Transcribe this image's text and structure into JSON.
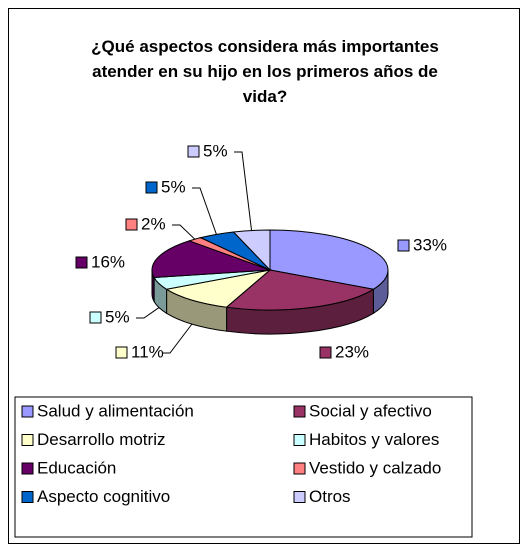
{
  "chart_data": {
    "type": "pie3d",
    "title": "¿Qué aspectos considera más importantes atender en su hijo en los primeros años de vida?",
    "categories": [
      "Salud y alimentación",
      "Social y afectivo",
      "Desarrollo motriz",
      "Habitos y valores",
      "Educación",
      "Vestido y calzado",
      "Aspecto cognitivo",
      "Otros"
    ],
    "values": [
      33,
      23,
      11,
      5,
      16,
      2,
      5,
      5
    ],
    "value_labels": [
      "33%",
      "23%",
      "11%",
      "5%",
      "16%",
      "2%",
      "5%",
      "5%"
    ],
    "colors": [
      "#9999ff",
      "#993366",
      "#ffffcc",
      "#ccffff",
      "#660066",
      "#ff8080",
      "#0066cc",
      "#ccccff"
    ],
    "legend": "bottom"
  }
}
